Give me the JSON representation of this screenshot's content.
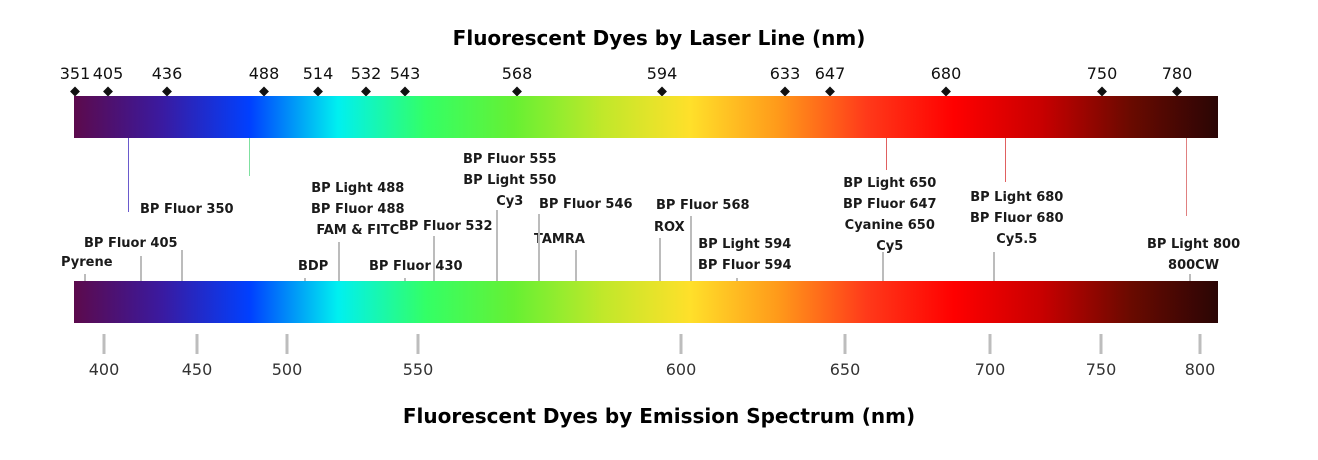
{
  "title_top": "Fluorescent Dyes by Laser Line (nm)",
  "title_bottom": "Fluorescent Dyes by Emission Spectrum (nm)",
  "laser_lines": [
    351,
    405,
    436,
    488,
    514,
    532,
    543,
    568,
    594,
    633,
    647,
    680,
    750,
    780
  ],
  "emission_axis": {
    "ticks": [
      400,
      450,
      500,
      550,
      600,
      650,
      700,
      750,
      800
    ]
  },
  "spectrum_colors": [
    "#5c0a4c",
    "#3a1aa0",
    "#0040ff",
    "#00f0f0",
    "#33ff66",
    "#66f033",
    "#c0e82a",
    "#ffe02a",
    "#ff9a1a",
    "#ff3a1a",
    "#ff0000",
    "#c80000",
    "#6a0a00",
    "#2a0505"
  ],
  "dyes": [
    {
      "text": [
        "Pyrene"
      ],
      "emission": 390
    },
    {
      "text": [
        "BP Fluor 405"
      ],
      "emission": 420,
      "laser": 405
    },
    {
      "text": [
        "BP Fluor 350"
      ],
      "emission": 442
    },
    {
      "text": [
        "BDP"
      ],
      "emission": 507
    },
    {
      "text": [
        "BP Light 488",
        "BP Fluor 488",
        "FAM & FITC"
      ],
      "emission": 520,
      "laser": 488
    },
    {
      "text": [
        "BP Fluor 430"
      ],
      "emission": 545
    },
    {
      "text": [
        "BP Fluor 532"
      ],
      "emission": 553
    },
    {
      "text": [
        "BP Fluor 555",
        "BP Light 550",
        "Cy3"
      ],
      "emission": 565
    },
    {
      "text": [
        "TAMRA"
      ],
      "emission": 580
    },
    {
      "text": [
        "BP Fluor 546"
      ],
      "emission": 573
    },
    {
      "text": [
        "ROX"
      ],
      "emission": 596
    },
    {
      "text": [
        "BP Fluor 568"
      ],
      "emission": 603
    },
    {
      "text": [
        "BP Light 594",
        "BP Fluor 594"
      ],
      "emission": 617
    },
    {
      "text": [
        "BP Light 650",
        "BP Fluor 647",
        "Cyanine 650",
        "Cy5"
      ],
      "emission": 663,
      "laser": 647
    },
    {
      "text": [
        "BP Light 680",
        "BP Fluor 680",
        "Cy5.5"
      ],
      "emission": 702,
      "laser": 680
    },
    {
      "text": [
        "BP Light 800",
        "800CW"
      ],
      "emission": 795,
      "laser": 780
    }
  ]
}
